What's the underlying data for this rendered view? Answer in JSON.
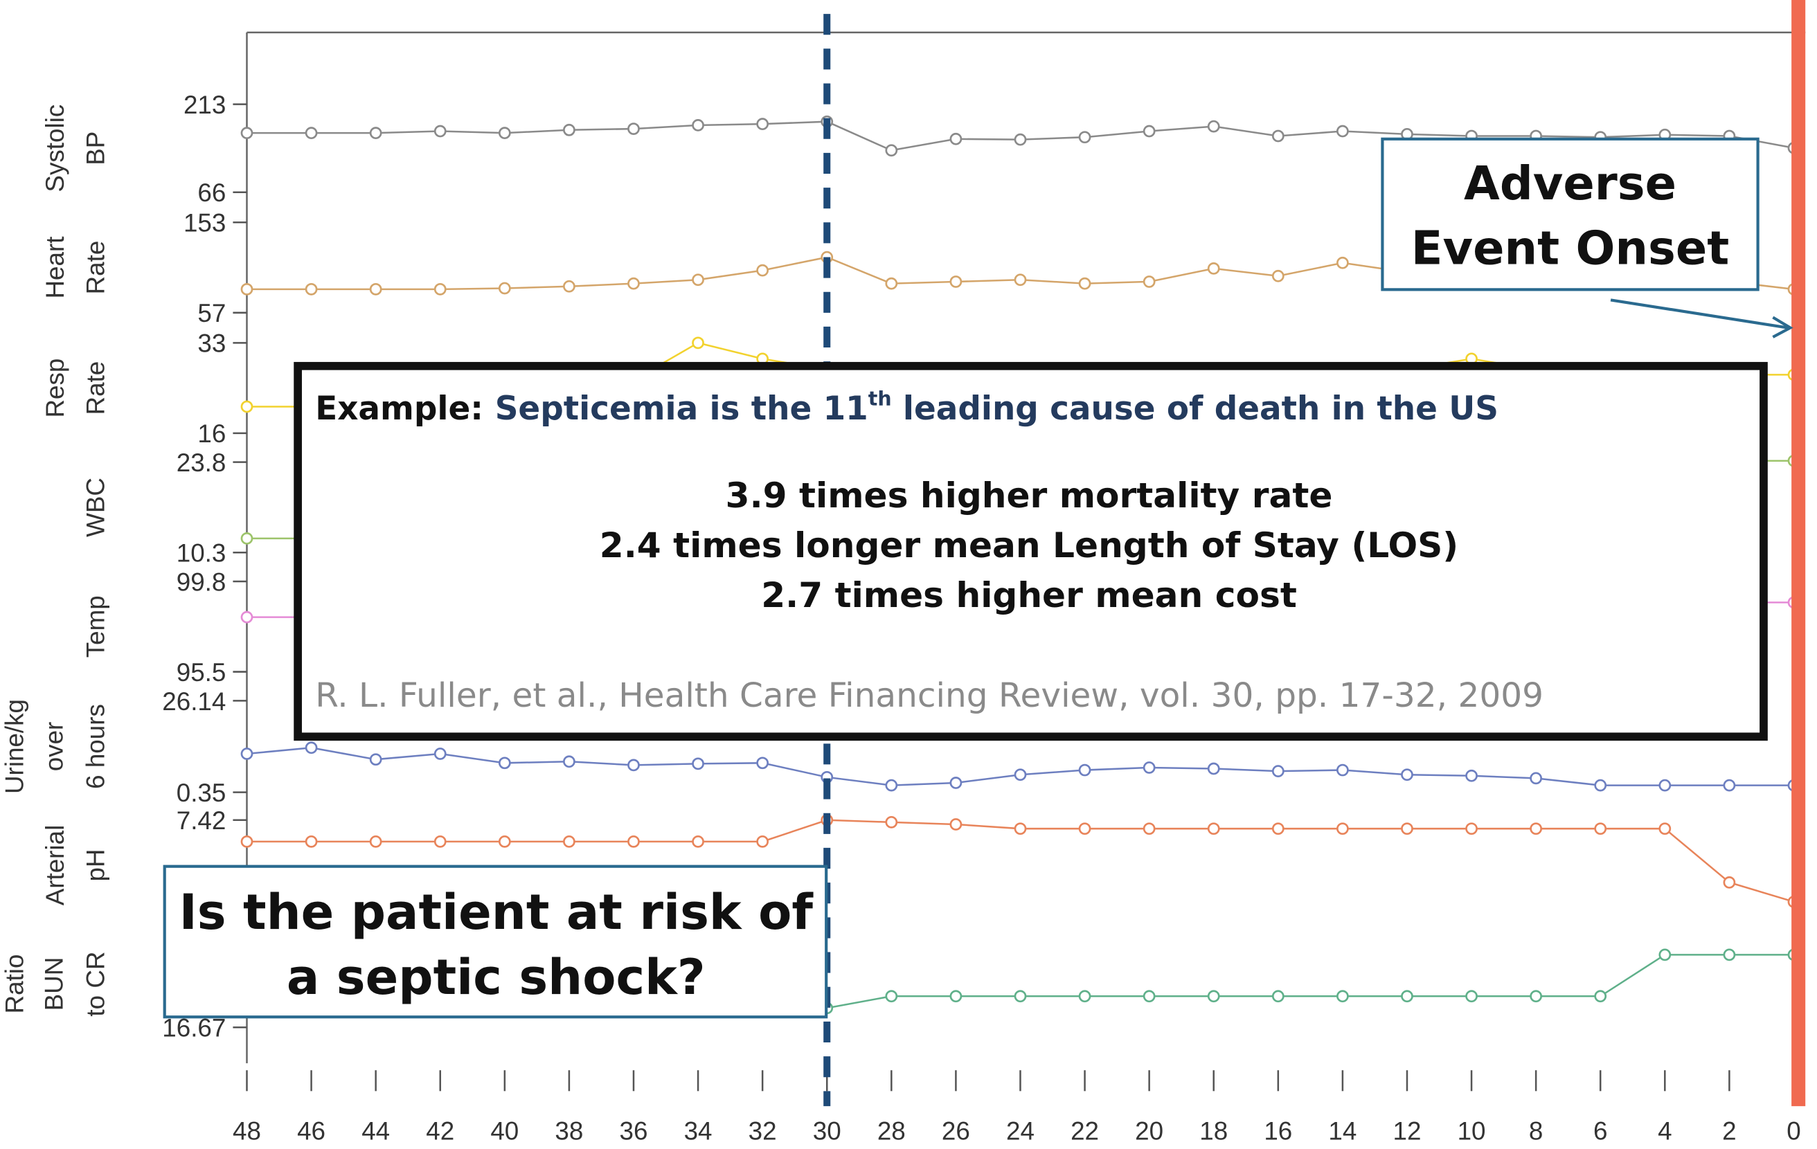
{
  "chart_data": {
    "type": "line",
    "x": [
      48,
      46,
      44,
      42,
      40,
      38,
      36,
      34,
      32,
      30,
      28,
      26,
      24,
      22,
      20,
      18,
      16,
      14,
      12,
      10,
      8,
      6,
      4,
      2,
      0
    ],
    "xlim": [
      48,
      0
    ],
    "xticks": [
      48,
      46,
      44,
      42,
      40,
      38,
      36,
      34,
      32,
      30,
      28,
      26,
      24,
      22,
      20,
      18,
      16,
      14,
      12,
      10,
      8,
      6,
      4,
      2,
      0
    ],
    "prediction_hour": 30,
    "event_hour": 0,
    "panels": [
      {
        "label": [
          "Systolic",
          "BP"
        ],
        "color": "#8a8a8a",
        "ylim": [
          66,
          213
        ],
        "yticks": [
          66,
          213
        ],
        "values": [
          165,
          165,
          165,
          168,
          165,
          170,
          172,
          178,
          180,
          184,
          136,
          155,
          154,
          158,
          168,
          176,
          160,
          168,
          163,
          160,
          160,
          158,
          162,
          160,
          140
        ]
      },
      {
        "label": [
          "Heart",
          "Rate"
        ],
        "color": "#d4a56a",
        "ylim": [
          57,
          153
        ],
        "yticks": [
          57,
          153
        ],
        "values": [
          82,
          82,
          82,
          82,
          83,
          85,
          88,
          92,
          102,
          116,
          88,
          90,
          92,
          88,
          90,
          104,
          96,
          110,
          100,
          100,
          100,
          98,
          96,
          90,
          82
        ]
      },
      {
        "label": [
          "Resp",
          "Rate"
        ],
        "color": "#f2d22e",
        "ylim": [
          16,
          33
        ],
        "yticks": [
          16,
          33
        ],
        "values": [
          21,
          21,
          22,
          23,
          24,
          25,
          26,
          33,
          30,
          28,
          26,
          26,
          26,
          26,
          26,
          27,
          27,
          27,
          28,
          30,
          28,
          27,
          27,
          27,
          27
        ]
      },
      {
        "label": [
          "WBC"
        ],
        "color": "#9dc46b",
        "ylim": [
          10.3,
          23.8
        ],
        "yticks": [
          10.3,
          23.8
        ],
        "values": [
          12.4,
          12.4,
          12.4,
          12.6,
          12.8,
          13,
          13.5,
          14,
          14.5,
          15,
          15.5,
          16,
          16.5,
          17,
          17.5,
          18,
          19,
          20,
          21,
          22,
          22.5,
          23,
          23.5,
          24,
          24
        ]
      },
      {
        "label": [
          "Temp"
        ],
        "color": "#e58bd6",
        "ylim": [
          95.5,
          99.8
        ],
        "yticks": [
          95.5,
          99.8
        ],
        "values": [
          98.1,
          98.1,
          98.1,
          98.2,
          98.2,
          98.2,
          98.3,
          98.3,
          98.3,
          98.4,
          98.4,
          98.4,
          98.5,
          98.5,
          98.5,
          98.6,
          98.6,
          98.6,
          98.7,
          98.7,
          98.7,
          98.8,
          98.8,
          98.8,
          98.8
        ]
      },
      {
        "label": [
          "Urine/kg",
          "over",
          "6 hours"
        ],
        "color": "#6d7fc0",
        "ylim": [
          0.35,
          26.14
        ],
        "yticks": [
          0.35,
          26.14
        ],
        "values": [
          11.2,
          12.9,
          9.6,
          11.2,
          8.6,
          9,
          8,
          8.4,
          8.6,
          4.6,
          2.3,
          3,
          5.3,
          6.6,
          7.3,
          7,
          6.3,
          6.6,
          5.3,
          5,
          4.3,
          2.3,
          2.3,
          2.3,
          2.3
        ]
      },
      {
        "label": [
          "Arterial",
          "pH"
        ],
        "color": "#e8845a",
        "ylim": [
          7,
          7.42
        ],
        "yticks": [
          7,
          7.42
        ],
        "values": [
          7.32,
          7.32,
          7.32,
          7.32,
          7.32,
          7.32,
          7.32,
          7.32,
          7.32,
          7.42,
          7.41,
          7.4,
          7.38,
          7.38,
          7.38,
          7.38,
          7.38,
          7.38,
          7.38,
          7.38,
          7.38,
          7.38,
          7.38,
          7.13,
          7.04
        ]
      },
      {
        "label": [
          "Ratio",
          "BUN",
          "to CR"
        ],
        "color": "#5fb08a",
        "ylim": [
          16.67,
          24
        ],
        "yticks": [
          16.67,
          24
        ],
        "values": [
          18.5,
          18.5,
          18.5,
          18.5,
          18.5,
          18.5,
          18.5,
          18.5,
          18.5,
          18.3,
          19.3,
          19.3,
          19.3,
          19.3,
          19.3,
          19.3,
          19.3,
          19.3,
          19.3,
          19.3,
          19.3,
          19.3,
          22.8,
          22.8,
          22.8
        ]
      }
    ]
  },
  "annotations": {
    "callout": {
      "lead": "Example:",
      "headline": [
        "Septicemia is the 11",
        "th",
        " leading cause of death in the US"
      ],
      "facts": [
        "3.9 times higher mortality rate",
        "2.4 times longer mean Length of Stay (LOS)",
        "2.7 times higher mean cost"
      ],
      "citation": "R. L. Fuller, et al., Health Care Financing Review, vol. 30, pp. 17-32, 2009"
    },
    "adverse_event": [
      "Adverse",
      "Event Onset"
    ],
    "question": [
      "Is the patient at risk of",
      "a septic shock?"
    ]
  }
}
